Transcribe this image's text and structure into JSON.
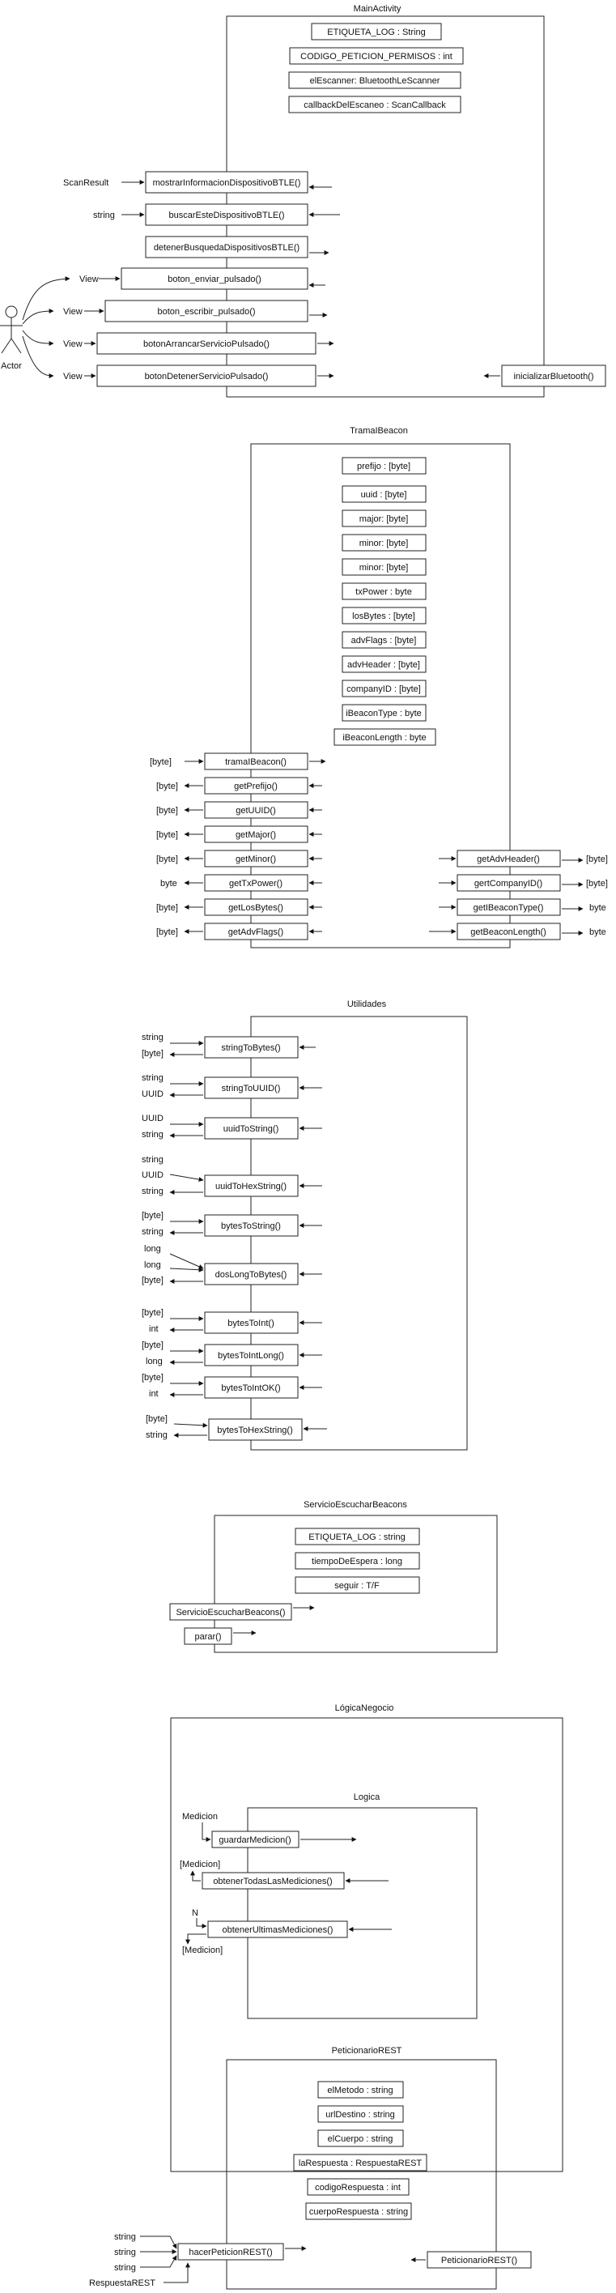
{
  "modules": [
    {
      "id": "main-activity",
      "title": "MainActivity",
      "attributes": [
        "ETIQUETA_LOG : String",
        "CODIGO_PETICION_PERMISOS : int",
        "elEscanner: BluetoothLeScanner",
        "callbackDelEscaneo : ScanCallback"
      ],
      "methods": [
        {
          "name": "mostrarInformacionDispositivoBTLE()",
          "inputs": [
            "ScanResult"
          ],
          "outputs": []
        },
        {
          "name": "buscarEsteDispositivoBTLE()",
          "inputs": [
            "string"
          ],
          "outputs": []
        },
        {
          "name": "detenerBusquedaDispositivosBTLE()",
          "inputs": [],
          "outputs": []
        },
        {
          "name": "boton_enviar_pulsado()",
          "inputs": [
            "View"
          ],
          "outputs": []
        },
        {
          "name": "boton_escribir_pulsado()",
          "inputs": [
            "View"
          ],
          "outputs": []
        },
        {
          "name": "botonArrancarServicioPulsado()",
          "inputs": [
            "View"
          ],
          "outputs": []
        },
        {
          "name": "botonDetenerServicioPulsado()",
          "inputs": [
            "View"
          ],
          "outputs": []
        },
        {
          "name": "inicializarBluetooth()",
          "inputs": [],
          "outputs": []
        }
      ],
      "actor": "Actor"
    },
    {
      "id": "trama-ibeacon",
      "title": "TramaIBeacon",
      "attributes": [
        "prefijo : [byte]",
        "uuid : [byte]",
        "major: [byte]",
        "minor: [byte]",
        "minor: [byte]",
        "txPower : byte",
        "losBytes : [byte]",
        "advFlags : [byte]",
        "advHeader : [byte]",
        "companyID : [byte]",
        "iBeaconType : byte",
        "iBeaconLength : byte"
      ],
      "methods": [
        {
          "name": "tramaIBeacon()",
          "inputs": [
            "[byte]"
          ],
          "outputs": []
        },
        {
          "name": "getPrefijo()",
          "inputs": [],
          "outputs": [
            "[byte]"
          ]
        },
        {
          "name": "getUUID()",
          "inputs": [],
          "outputs": [
            "[byte]"
          ]
        },
        {
          "name": "getMajor()",
          "inputs": [],
          "outputs": [
            "[byte]"
          ]
        },
        {
          "name": "getMinor()",
          "inputs": [],
          "outputs": [
            "[byte]"
          ]
        },
        {
          "name": "getTxPower()",
          "inputs": [],
          "outputs": [
            "byte"
          ]
        },
        {
          "name": "getLosBytes()",
          "inputs": [],
          "outputs": [
            "[byte]"
          ]
        },
        {
          "name": "getAdvFlags()",
          "inputs": [],
          "outputs": [
            "[byte]"
          ]
        },
        {
          "name": "getAdvHeader()",
          "inputs": [],
          "outputs": [
            "[byte]"
          ]
        },
        {
          "name": "gertCompanyID()",
          "inputs": [],
          "outputs": [
            "[byte]"
          ]
        },
        {
          "name": "getIBeaconType()",
          "inputs": [],
          "outputs": [
            "byte"
          ]
        },
        {
          "name": "getBeaconLength()",
          "inputs": [],
          "outputs": [
            "byte"
          ]
        }
      ]
    },
    {
      "id": "utilidades",
      "title": "Utilidades",
      "attributes": [],
      "methods": [
        {
          "name": "stringToBytes()",
          "inputs": [
            "string"
          ],
          "outputs": [
            "[byte]"
          ]
        },
        {
          "name": "stringToUUID()",
          "inputs": [
            "string"
          ],
          "outputs": [
            "UUID"
          ]
        },
        {
          "name": "uuidToString()",
          "inputs": [
            "UUID"
          ],
          "outputs": [
            "string"
          ]
        },
        {
          "name": "uuidToHexString()",
          "inputs": [
            "string",
            "UUID"
          ],
          "outputs": [
            "string"
          ]
        },
        {
          "name": "bytesToString()",
          "inputs": [
            "[byte]"
          ],
          "outputs": [
            "string"
          ]
        },
        {
          "name": "dosLongToBytes()",
          "inputs": [
            "long",
            "long"
          ],
          "outputs": [
            "[byte]"
          ]
        },
        {
          "name": "bytesToInt()",
          "inputs": [
            "[byte]"
          ],
          "outputs": [
            "int"
          ]
        },
        {
          "name": "bytesToIntLong()",
          "inputs": [
            "[byte]"
          ],
          "outputs": [
            "long"
          ]
        },
        {
          "name": "bytesToIntOK()",
          "inputs": [
            "[byte]"
          ],
          "outputs": [
            "int"
          ]
        },
        {
          "name": "bytesToHexString()",
          "inputs": [
            "[byte]"
          ],
          "outputs": [
            "string"
          ]
        }
      ]
    },
    {
      "id": "servicio-escuchar-beacons",
      "title": "ServicioEscucharBeacons",
      "attributes": [
        "ETIQUETA_LOG : string",
        "tiempoDeEspera : long",
        "seguir : T/F"
      ],
      "methods": [
        {
          "name": "ServicioEscucharBeacons()",
          "inputs": [],
          "outputs": []
        },
        {
          "name": "parar()",
          "inputs": [],
          "outputs": []
        }
      ]
    },
    {
      "id": "logica-negocio",
      "title": "LógicaNegocio",
      "attributes": [],
      "methods": []
    },
    {
      "id": "logica",
      "title": "Logica",
      "attributes": [],
      "methods": [
        {
          "name": "guardarMedicion()",
          "inputs": [
            "Medicion"
          ],
          "outputs": []
        },
        {
          "name": "obtenerTodasLasMediciones()",
          "inputs": [],
          "outputs": [
            "[Medicion]"
          ]
        },
        {
          "name": "obtenerUltimasMediciones()",
          "inputs": [
            "N"
          ],
          "outputs": [
            "[Medicion]"
          ]
        }
      ]
    },
    {
      "id": "peticionario-rest",
      "title": "PeticionarioREST",
      "attributes": [
        "elMetodo : string",
        "urlDestino : string",
        "elCuerpo : string",
        "laRespuesta : RespuestaREST",
        "codigoRespuesta : int",
        "cuerpoRespuesta : string"
      ],
      "methods": [
        {
          "name": "hacerPeticionREST()",
          "inputs": [
            "string",
            "string",
            "string",
            "RespuestaREST"
          ],
          "outputs": []
        },
        {
          "name": "PeticionarioREST()",
          "inputs": [],
          "outputs": []
        }
      ]
    }
  ]
}
